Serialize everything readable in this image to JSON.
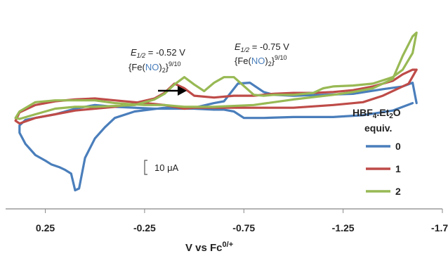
{
  "chart_data": {
    "type": "line",
    "xlabel": "V vs Fc",
    "xlabel_sup": "0/+",
    "xlim": [
      0.45,
      -1.75
    ],
    "x_ticks": [
      {
        "value": 0.25,
        "label": "0.25"
      },
      {
        "value": -0.25,
        "label": "-0.25"
      },
      {
        "value": -0.75,
        "label": "-0.75"
      },
      {
        "value": -1.25,
        "label": "-1.25"
      },
      {
        "value": -1.75,
        "label": "-1.75"
      }
    ],
    "ylim": [
      -90,
      120
    ],
    "legend": {
      "title_line1": "HBF",
      "title_sub1": "4",
      "title_mid": ".Et",
      "title_sub2": "2",
      "title_end": "O",
      "title_line2": "equiv.",
      "placement": "right"
    },
    "scale_bar": {
      "label": "10 μA",
      "value": 10
    },
    "annotations": [
      {
        "e_label": "E",
        "e_sub": "1/2",
        "value_text": " = -0.52 V",
        "complex_open": "{Fe(",
        "complex_no": "NO",
        "complex_close": ")",
        "complex_sub": "2",
        "complex_end": "}",
        "complex_sup": "9/10"
      },
      {
        "e_label": "E",
        "e_sub": "1/2",
        "value_text": " = -0.75 V",
        "complex_open": "{Fe(",
        "complex_no": "NO",
        "complex_close": ")",
        "complex_sub": "2",
        "complex_end": "}",
        "complex_sup": "9/10"
      }
    ],
    "series": [
      {
        "name": "0",
        "color": "#4a7ebb",
        "points": [
          [
            -1.6,
            24
          ],
          [
            -1.5,
            16
          ],
          [
            -1.35,
            11
          ],
          [
            -1.2,
            9
          ],
          [
            -1.0,
            9
          ],
          [
            -0.85,
            8
          ],
          [
            -0.8,
            8
          ],
          [
            -0.75,
            8
          ],
          [
            -0.7,
            15
          ],
          [
            -0.65,
            17
          ],
          [
            -0.6,
            17
          ],
          [
            -0.5,
            18
          ],
          [
            -0.4,
            18
          ],
          [
            -0.3,
            18
          ],
          [
            -0.2,
            19
          ],
          [
            -0.1,
            20
          ],
          [
            0.0,
            22
          ],
          [
            0.1,
            18
          ],
          [
            0.15,
            15
          ],
          [
            0.2,
            12
          ],
          [
            0.3,
            8
          ],
          [
            0.35,
            6
          ],
          [
            0.38,
            0
          ],
          [
            0.38,
            -8
          ],
          [
            0.35,
            -20
          ],
          [
            0.3,
            -32
          ],
          [
            0.25,
            -38
          ],
          [
            0.22,
            -42
          ],
          [
            0.18,
            -45
          ],
          [
            0.15,
            -48
          ],
          [
            0.12,
            -52
          ],
          [
            0.1,
            -70
          ],
          [
            0.08,
            -68
          ],
          [
            0.05,
            -35
          ],
          [
            0.0,
            -14
          ],
          [
            -0.05,
            -2
          ],
          [
            -0.1,
            8
          ],
          [
            -0.2,
            15
          ],
          [
            -0.35,
            19
          ],
          [
            -0.5,
            19
          ],
          [
            -0.6,
            24
          ],
          [
            -0.65,
            26
          ],
          [
            -0.72,
            45
          ],
          [
            -0.78,
            46
          ],
          [
            -0.85,
            36
          ],
          [
            -0.9,
            33
          ],
          [
            -1.0,
            32
          ],
          [
            -1.15,
            33
          ],
          [
            -1.3,
            34
          ],
          [
            -1.45,
            39
          ],
          [
            -1.55,
            42
          ],
          [
            -1.6,
            46
          ],
          [
            -1.62,
            24
          ]
        ]
      },
      {
        "name": "1",
        "color": "#be4b48",
        "points": [
          [
            -1.62,
            60
          ],
          [
            -1.58,
            45
          ],
          [
            -1.45,
            32
          ],
          [
            -1.35,
            25
          ],
          [
            -1.2,
            22
          ],
          [
            -1.0,
            19
          ],
          [
            -0.8,
            19
          ],
          [
            -0.6,
            19
          ],
          [
            -0.5,
            19
          ],
          [
            -0.45,
            18
          ],
          [
            -0.35,
            22
          ],
          [
            -0.3,
            23
          ],
          [
            -0.2,
            25
          ],
          [
            -0.1,
            27
          ],
          [
            0.0,
            29
          ],
          [
            0.1,
            28
          ],
          [
            0.2,
            26
          ],
          [
            0.3,
            22
          ],
          [
            0.38,
            14
          ],
          [
            0.4,
            5
          ],
          [
            0.38,
            2
          ],
          [
            0.3,
            8
          ],
          [
            0.2,
            12
          ],
          [
            0.1,
            16
          ],
          [
            0.0,
            18
          ],
          [
            -0.1,
            20
          ],
          [
            -0.2,
            24
          ],
          [
            -0.3,
            29
          ],
          [
            -0.35,
            35
          ],
          [
            -0.4,
            45
          ],
          [
            -0.45,
            40
          ],
          [
            -0.5,
            32
          ],
          [
            -0.6,
            30
          ],
          [
            -0.7,
            32
          ],
          [
            -0.8,
            32
          ],
          [
            -0.9,
            34
          ],
          [
            -1.0,
            35
          ],
          [
            -1.1,
            35
          ],
          [
            -1.2,
            36
          ],
          [
            -1.3,
            38
          ],
          [
            -1.4,
            42
          ],
          [
            -1.5,
            48
          ],
          [
            -1.55,
            55
          ],
          [
            -1.6,
            60
          ],
          [
            -1.62,
            60
          ]
        ]
      },
      {
        "name": "2",
        "color": "#98b954",
        "points": [
          [
            -1.6,
            96
          ],
          [
            -1.55,
            75
          ],
          [
            -1.5,
            50
          ],
          [
            -1.4,
            40
          ],
          [
            -1.3,
            36
          ],
          [
            -1.2,
            33
          ],
          [
            -1.0,
            28
          ],
          [
            -0.8,
            22
          ],
          [
            -0.6,
            20
          ],
          [
            -0.45,
            20
          ],
          [
            -0.35,
            22
          ],
          [
            -0.25,
            22
          ],
          [
            -0.1,
            24
          ],
          [
            0.0,
            27
          ],
          [
            0.1,
            27
          ],
          [
            0.2,
            27
          ],
          [
            0.3,
            25
          ],
          [
            0.38,
            15
          ],
          [
            0.4,
            8
          ],
          [
            0.38,
            7
          ],
          [
            0.3,
            12
          ],
          [
            0.2,
            18
          ],
          [
            0.1,
            20
          ],
          [
            0.0,
            20
          ],
          [
            -0.1,
            21
          ],
          [
            -0.2,
            22
          ],
          [
            -0.3,
            28
          ],
          [
            -0.35,
            34
          ],
          [
            -0.4,
            44
          ],
          [
            -0.45,
            52
          ],
          [
            -0.5,
            44
          ],
          [
            -0.55,
            37
          ],
          [
            -0.6,
            46
          ],
          [
            -0.65,
            52
          ],
          [
            -0.7,
            52
          ],
          [
            -0.8,
            33
          ],
          [
            -0.85,
            32
          ],
          [
            -0.9,
            33
          ],
          [
            -1.0,
            33
          ],
          [
            -1.1,
            35
          ],
          [
            -1.15,
            40
          ],
          [
            -1.2,
            42
          ],
          [
            -1.3,
            43
          ],
          [
            -1.4,
            45
          ],
          [
            -1.5,
            52
          ],
          [
            -1.55,
            60
          ],
          [
            -1.6,
            78
          ],
          [
            -1.62,
            100
          ],
          [
            -1.6,
            96
          ]
        ]
      }
    ]
  }
}
